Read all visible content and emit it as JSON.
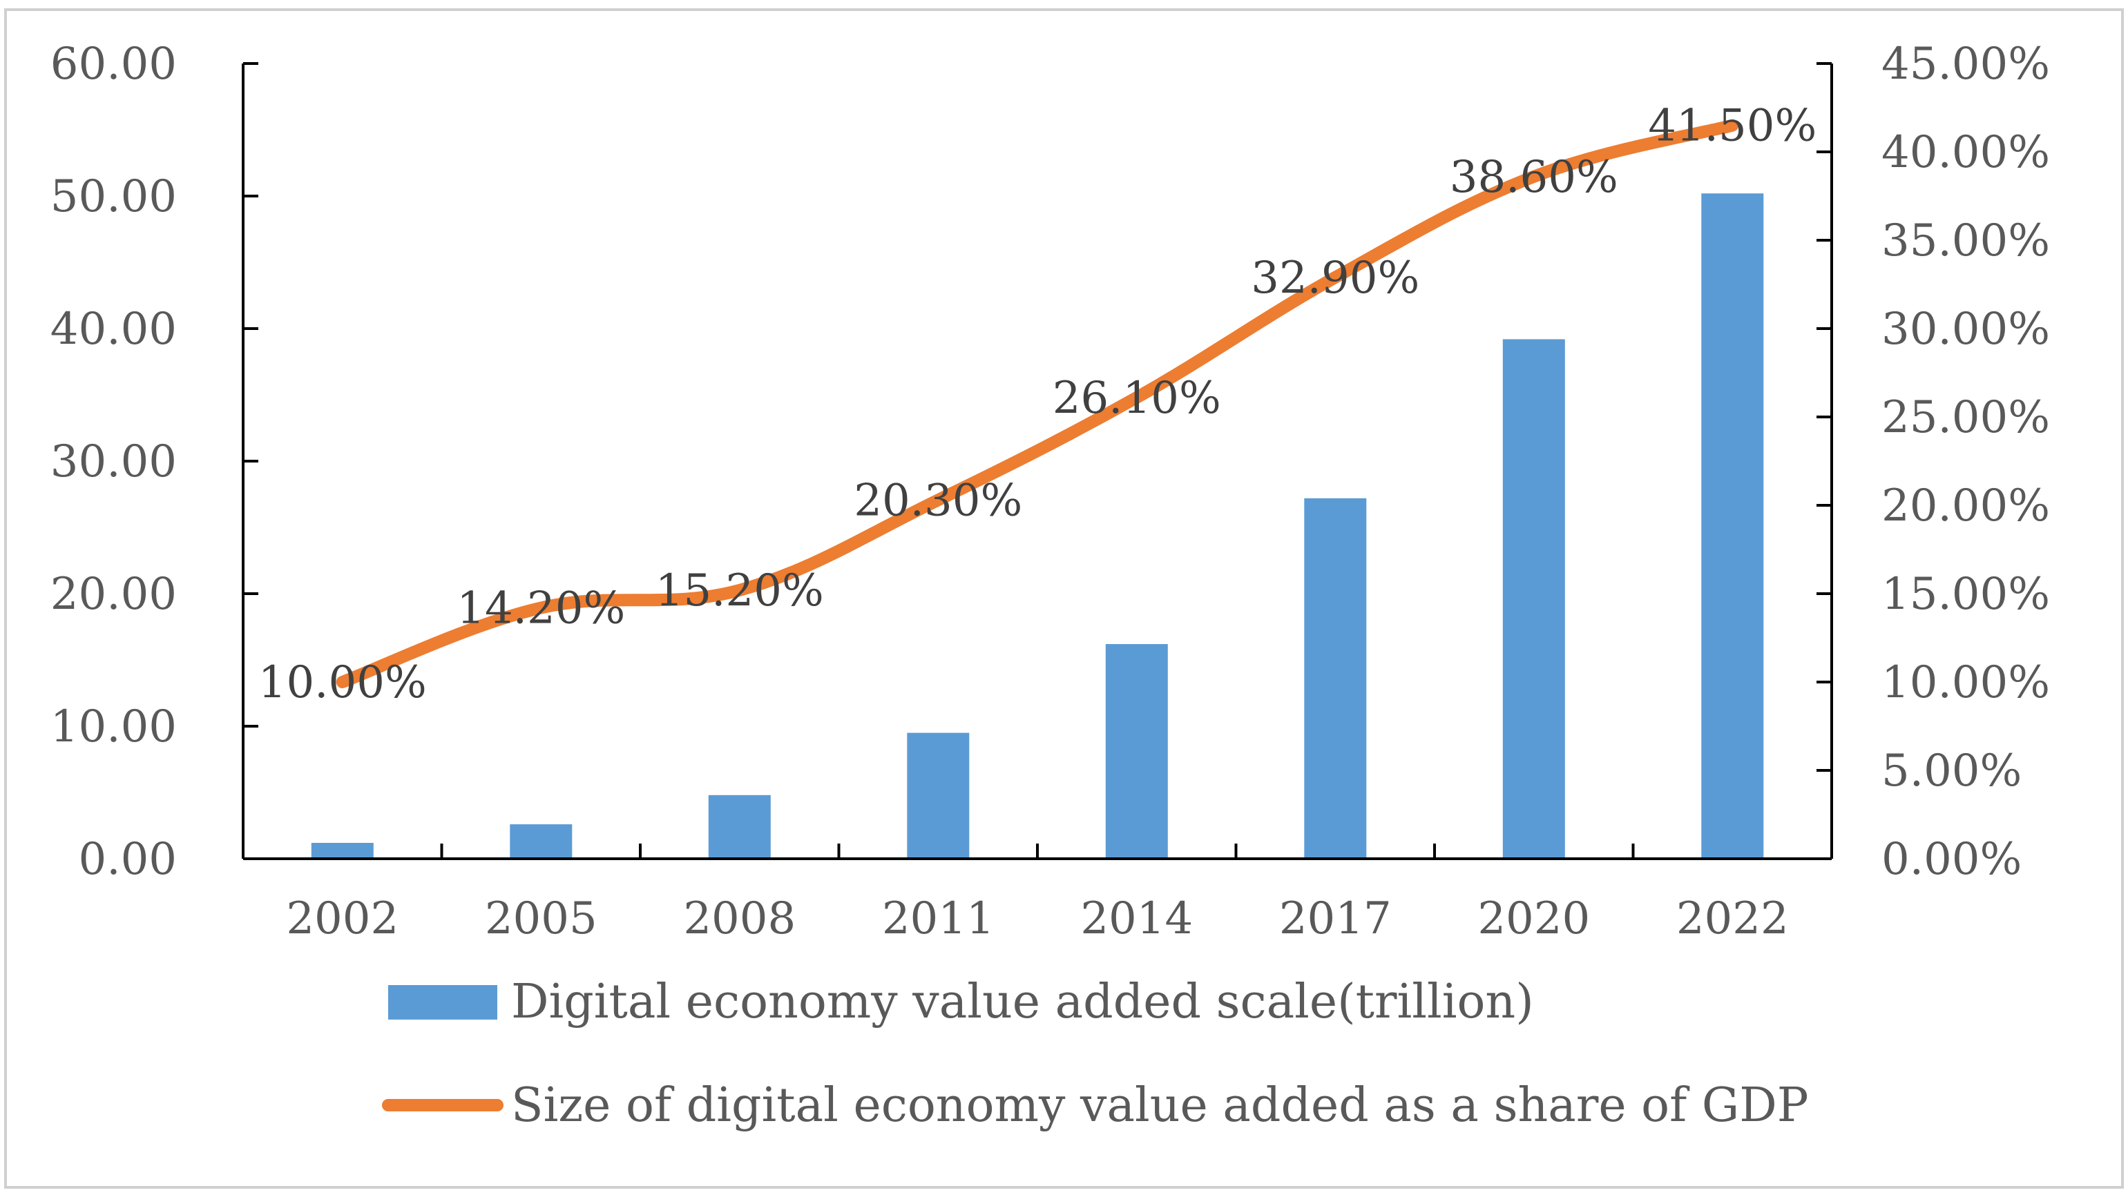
{
  "chart_data": {
    "type": "bar+line",
    "categories": [
      "2002",
      "2005",
      "2008",
      "2011",
      "2014",
      "2017",
      "2020",
      "2022"
    ],
    "series": [
      {
        "name": "Digital economy value added scale(trillion)",
        "kind": "bar",
        "axis": "left",
        "color": "#5B9BD5",
        "values": [
          1.2,
          2.6,
          4.8,
          9.5,
          16.2,
          27.2,
          39.2,
          50.2
        ]
      },
      {
        "name": "Size of digital economy value added as a share of GDP",
        "kind": "line",
        "axis": "right",
        "color": "#ED7D31",
        "values": [
          10.0,
          14.2,
          15.2,
          20.3,
          26.1,
          32.9,
          38.6,
          41.5
        ],
        "labels": [
          "10.00%",
          "14.20%",
          "15.20%",
          "20.30%",
          "26.10%",
          "32.90%",
          "38.60%",
          "41.50%"
        ]
      }
    ],
    "left_axis": {
      "ylim": [
        0,
        60
      ],
      "ticks": [
        0,
        10,
        20,
        30,
        40,
        50,
        60
      ],
      "tick_labels": [
        "0.00",
        "10.00",
        "20.00",
        "30.00",
        "40.00",
        "50.00",
        "60.00"
      ]
    },
    "right_axis": {
      "ylim": [
        0,
        45
      ],
      "ticks": [
        0,
        5,
        10,
        15,
        20,
        25,
        30,
        35,
        40,
        45
      ],
      "tick_labels": [
        "0.00%",
        "5.00%",
        "10.00%",
        "15.00%",
        "20.00%",
        "25.00%",
        "30.00%",
        "35.00%",
        "40.00%",
        "45.00%"
      ]
    },
    "legend_position": "bottom",
    "grid": false,
    "title": "",
    "xlabel": "",
    "ylabel": ""
  }
}
